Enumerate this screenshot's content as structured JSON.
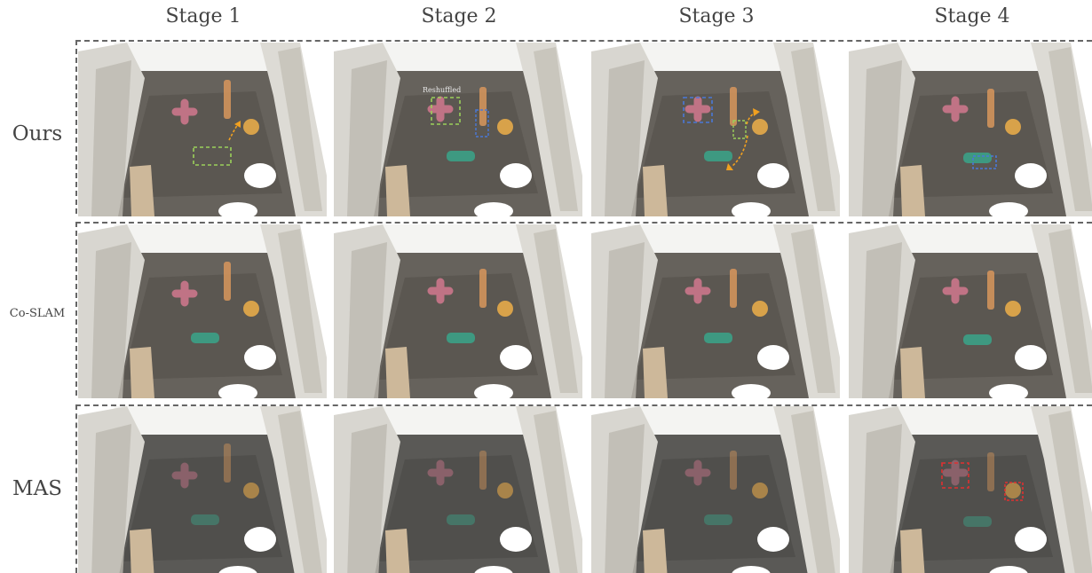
{
  "columns": [
    "Stage 1",
    "Stage 2",
    "Stage 3",
    "Stage 4"
  ],
  "rows": [
    {
      "id": "ours",
      "label": "Ours"
    },
    {
      "id": "coslam",
      "label": "Co-SLAM"
    },
    {
      "id": "mas",
      "label": "MAS"
    }
  ],
  "annotation": "Reshuffled",
  "colors": {
    "reshuffle_box": "#9bd05a",
    "moved_box": "#4a78d8",
    "error_box": "#e03030",
    "motion_arrow": "#f0a020",
    "dash": "#666666"
  }
}
